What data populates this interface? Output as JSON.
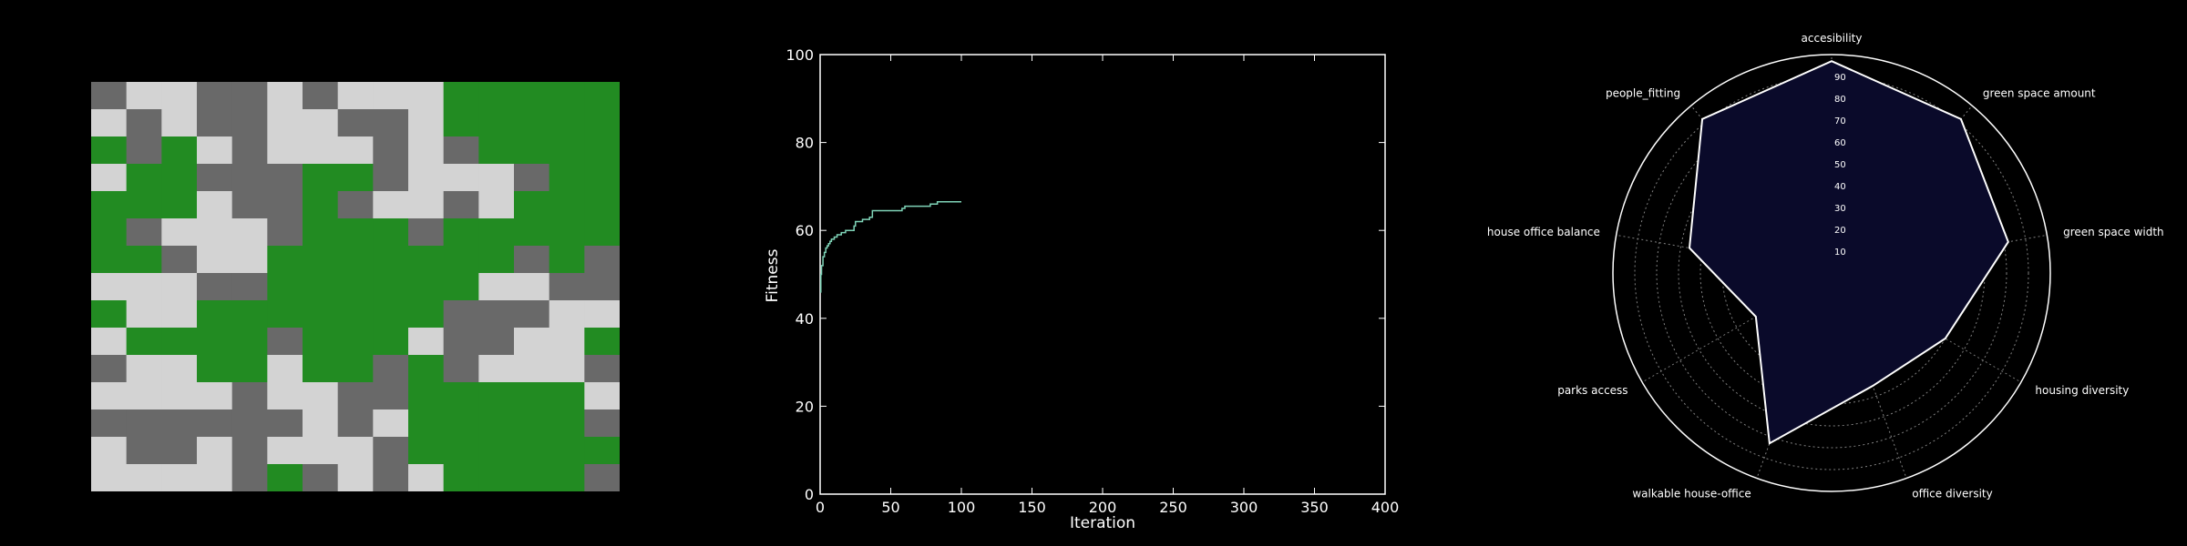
{
  "colors": {
    "background": "#000000",
    "building": "#d3d3d3",
    "road": "#696969",
    "green": "#228b22",
    "line": "#7fd4b8",
    "radar_fill": "#0a0a2a",
    "radar_stroke": "#ffffff",
    "grid": "#7f7f7f"
  },
  "chart_data": [
    {
      "type": "heatmap",
      "legend": {
        "G": "building",
        "D": "road",
        "V": "green"
      },
      "rows": [
        "DGGDDGDGGGVVVVV",
        "GDGDDGGDDGVVVVV",
        "VDVGDGGGDGDVVVV",
        "GVVDDDVVDGGGDVV",
        "VVVGDDVDGGDGVVV",
        "VDGGGDVVVDVVVVV",
        "VVDGGVVVVVVVDVD",
        "GGGDDVVVVVVGGDD",
        "VGGVVVVVVVDDDGG",
        "GVVVVDVVVGDDGGV",
        "DGGVVGVVDVDGGGD",
        "GGGGDGGDDVVVVVG",
        "DDDDDDGDGVVVVVD",
        "GDDGDGGGDVVVVVV",
        "GGGGDVDGDGVVVVD"
      ]
    },
    {
      "type": "line",
      "xlabel": "Iteration",
      "ylabel": "Fitness",
      "xlim": [
        0,
        400
      ],
      "ylim": [
        0,
        100
      ],
      "xticks": [
        "0",
        "50",
        "100",
        "150",
        "200",
        "250",
        "300",
        "350",
        "400"
      ],
      "yticks": [
        "0",
        "20",
        "40",
        "60",
        "80",
        "100"
      ],
      "x": [
        0,
        0.5,
        1,
        2,
        3,
        4,
        5,
        6,
        7,
        8,
        10,
        12,
        15,
        18,
        20,
        24,
        25,
        30,
        35,
        37,
        40,
        45,
        55,
        58,
        60,
        62,
        70,
        78,
        80,
        83,
        90,
        100
      ],
      "y": [
        46,
        50,
        52,
        54,
        55,
        56,
        56.5,
        57,
        57.5,
        58,
        58.5,
        59,
        59.5,
        60,
        60,
        61,
        62,
        62.5,
        63,
        64.5,
        64.5,
        64.5,
        64.5,
        65,
        65.5,
        65.5,
        65.5,
        66,
        66,
        66.5,
        66.5,
        66.5
      ]
    },
    {
      "type": "radar",
      "categories": [
        "accesibility",
        "green space amount",
        "green space width",
        "housing diversity",
        "office diversity",
        "walkable house-office",
        "parks access",
        "house office balance",
        "people_fitting"
      ],
      "values": [
        97,
        92,
        82,
        60,
        55,
        83,
        40,
        66,
        92
      ],
      "rmax": 100,
      "rticks": [
        "10",
        "20",
        "30",
        "40",
        "50",
        "60",
        "70",
        "80",
        "90"
      ]
    }
  ]
}
